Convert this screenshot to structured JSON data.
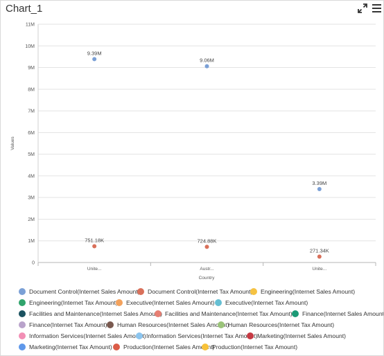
{
  "header": {
    "title": "Chart_1",
    "expand_icon": "expand-icon",
    "menu_icon": "hamburger-menu-icon"
  },
  "chart_data": {
    "type": "scatter",
    "categories": [
      "Unite...",
      "Austr...",
      "Unite..."
    ],
    "xlabel": "Country",
    "ylabel": "Values",
    "ylim": [
      0,
      11000000
    ],
    "yticks": [
      0,
      1000000,
      2000000,
      3000000,
      4000000,
      5000000,
      6000000,
      7000000,
      8000000,
      9000000,
      10000000,
      11000000
    ],
    "ytick_labels": [
      "0",
      "1M",
      "2M",
      "3M",
      "4M",
      "5M",
      "6M",
      "7M",
      "8M",
      "9M",
      "10M",
      "11M"
    ],
    "grid": true,
    "legend_position": "bottom",
    "series": [
      {
        "name": "Document Control(Internet Sales Amount)",
        "color": "#7ba0d6"
      },
      {
        "name": "Document Control(Internet Tax Amount)",
        "color": "#d9705a"
      },
      {
        "name": "Engineering(Internet Sales Amount)",
        "color": "#f5c242"
      },
      {
        "name": "Engineering(Internet Tax Amount)",
        "color": "#30a46c"
      },
      {
        "name": "Executive(Internet Sales Amount)",
        "color": "#f3a25d"
      },
      {
        "name": "Executive(Internet Tax Amount)",
        "color": "#66bfd3"
      },
      {
        "name": "Facilities and Maintenance(Internet Sales Amount)",
        "color": "#1b5260"
      },
      {
        "name": "Facilities and Maintenance(Internet Tax Amount)",
        "color": "#e77f73"
      },
      {
        "name": "Finance(Internet Sales Amount)",
        "color": "#1b9a76"
      },
      {
        "name": "Finance(Internet Tax Amount)",
        "color": "#b9a3cb"
      },
      {
        "name": "Human Resources(Internet Sales Amount)",
        "color": "#7a5a50"
      },
      {
        "name": "Human Resources(Internet Tax Amount)",
        "color": "#9bc47a"
      },
      {
        "name": "Information Services(Internet Sales Amount)",
        "color": "#f28fb5"
      },
      {
        "name": "Information Services(Internet Tax Amount)",
        "color": "#8cc5ef"
      },
      {
        "name": "Marketing(Internet Sales Amount)",
        "color": "#c63a44"
      },
      {
        "name": "Marketing(Internet Tax Amount)",
        "color": "#5f98ea"
      },
      {
        "name": "Production(Internet Sales Amount)",
        "color": "#db5c48"
      },
      {
        "name": "Production(Internet Tax Amount)",
        "color": "#f8c239"
      }
    ],
    "points": [
      {
        "category": 0,
        "series": 0,
        "value": 9390000,
        "label": "9.39M"
      },
      {
        "category": 1,
        "series": 0,
        "value": 9060000,
        "label": "9.06M"
      },
      {
        "category": 2,
        "series": 0,
        "value": 3390000,
        "label": "3.39M"
      },
      {
        "category": 0,
        "series": 1,
        "value": 751180,
        "label": "751.18K"
      },
      {
        "category": 1,
        "series": 1,
        "value": 724880,
        "label": "724.88K"
      },
      {
        "category": 2,
        "series": 1,
        "value": 271340,
        "label": "271.34K"
      }
    ]
  }
}
